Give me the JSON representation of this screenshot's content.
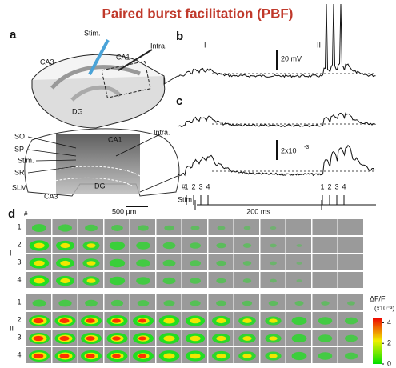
{
  "title": "Paired burst facilitation (PBF)",
  "panels": {
    "a": "a",
    "b": "b",
    "c": "c",
    "d": "d"
  },
  "panel_a": {
    "stim": "Stim.",
    "ca3_top": "CA3",
    "ca1_top": "CA1",
    "intra_top": "Intra.",
    "dg_top": "DG",
    "so": "SO",
    "sp": "SP",
    "stim_slice": "Stim.",
    "sr": "SR",
    "slm": "SLM",
    "ca1_slice": "CA1",
    "intra_slice": "Intra.",
    "dg_slice": "DG",
    "ca3_slice": "CA3",
    "scale_bar": "500 μm"
  },
  "panel_b": {
    "epoch_1": "I",
    "epoch_2": "II",
    "scale": "20 mV"
  },
  "panel_c": {
    "scale": "2x10",
    "scale_exp": "-3"
  },
  "stim": {
    "hash": "#",
    "label": "Stim",
    "pulses_1": [
      "1",
      "2",
      "3",
      "4"
    ],
    "pulses_2": [
      "1",
      "2",
      "3",
      "4"
    ],
    "interval": "200 ms"
  },
  "panel_d": {
    "hash": "#",
    "groups": [
      {
        "name": "I",
        "rows": [
          "1",
          "2",
          "3",
          "4"
        ]
      },
      {
        "name": "II",
        "rows": [
          "1",
          "2",
          "3",
          "4"
        ]
      }
    ],
    "colorbar": {
      "label": "ΔF/F",
      "unit": "(x10⁻³)",
      "ticks": [
        0,
        2,
        4
      ],
      "lim": [
        0,
        4.5
      ]
    }
  }
}
